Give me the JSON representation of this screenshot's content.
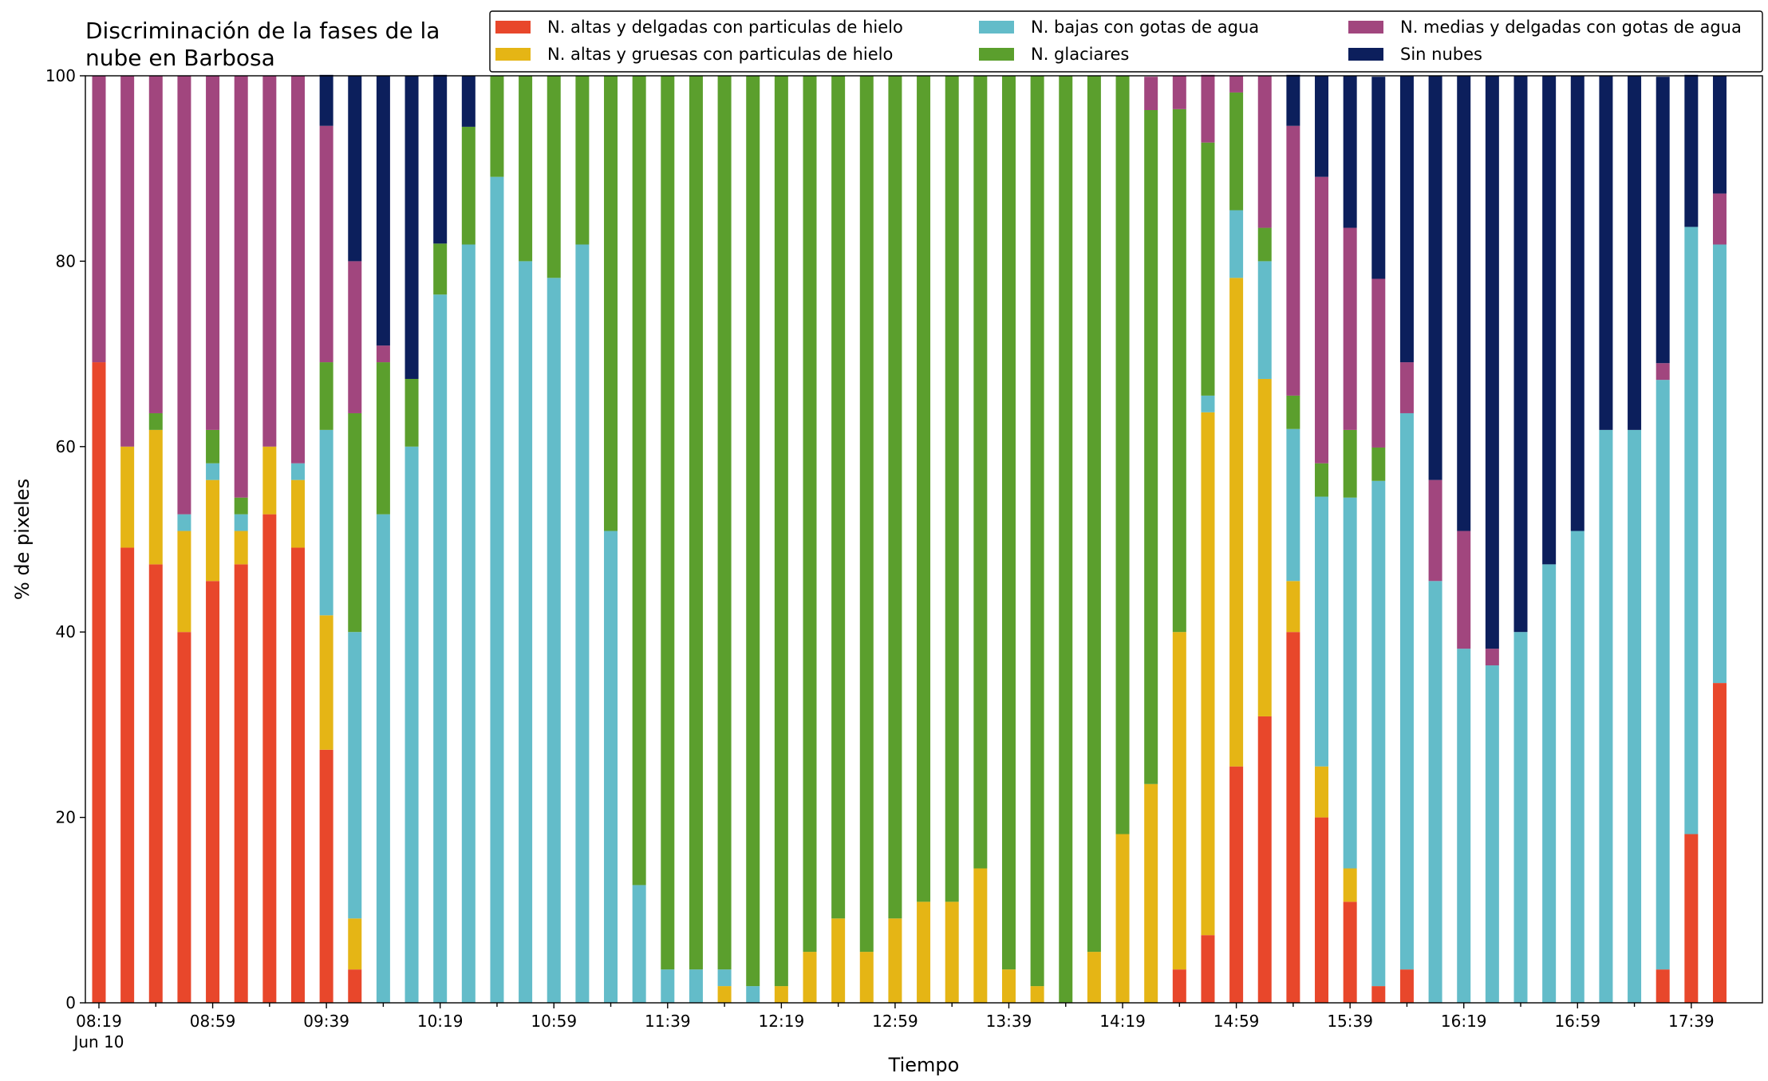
{
  "chart_data": {
    "type": "stacked_bar",
    "title": "Discriminación de la fases de la\nnube en Barbosa",
    "x_label": "Tiempo",
    "y_label": "% de pixeles",
    "x_sublabel": "Jun 10",
    "categories": [
      "08:19",
      null,
      null,
      null,
      "08:59",
      null,
      null,
      null,
      "09:39",
      null,
      null,
      null,
      "10:19",
      null,
      null,
      null,
      "10:59",
      null,
      null,
      null,
      "11:39",
      null,
      null,
      null,
      "12:19",
      null,
      null,
      null,
      "12:59",
      null,
      null,
      null,
      "13:39",
      null,
      null,
      null,
      "14:19",
      null,
      null,
      null,
      "14:59",
      null,
      null,
      null,
      "15:39",
      null,
      null,
      null,
      "16:19",
      null,
      null,
      null,
      "16:59",
      null,
      null,
      null,
      "17:39",
      null
    ],
    "ylim": [
      0,
      100
    ],
    "yticks": [
      0,
      20,
      40,
      60,
      80,
      100
    ],
    "legend": "top-right",
    "series": [
      {
        "name": "N. altas y delgadas con particulas de hielo",
        "color": "#e8472b",
        "values": [
          69.1,
          49.1,
          47.3,
          40,
          45.5,
          47.3,
          52.7,
          49.1,
          27.3,
          3.6,
          0,
          0,
          0,
          0,
          0,
          0,
          0,
          0,
          0,
          0,
          0,
          0,
          0,
          0,
          0,
          0,
          0,
          0,
          0,
          0,
          0,
          0,
          0,
          0,
          0,
          0,
          0,
          0,
          3.6,
          7.3,
          25.5,
          30.9,
          40,
          20,
          10.9,
          1.8,
          3.6,
          0,
          0,
          0,
          0,
          0,
          0,
          0,
          0,
          3.6,
          18.2,
          34.5
        ]
      },
      {
        "name": "N. altas y gruesas con particulas de hielo",
        "color": "#e5b515",
        "values": [
          0,
          10.9,
          14.5,
          10.9,
          10.9,
          3.6,
          7.3,
          7.3,
          14.5,
          5.5,
          0,
          0,
          0,
          0,
          0,
          0,
          0,
          0,
          0,
          0,
          0,
          0,
          1.8,
          0,
          1.8,
          5.5,
          9.1,
          5.5,
          9.1,
          10.9,
          10.9,
          14.5,
          3.6,
          1.8,
          0,
          5.5,
          18.2,
          23.6,
          36.4,
          56.4,
          52.7,
          36.4,
          5.5,
          5.5,
          3.6,
          0,
          0,
          0,
          0,
          0,
          0,
          0,
          0,
          0,
          0,
          0,
          0,
          0
        ]
      },
      {
        "name": "N. bajas con gotas de agua",
        "color": "#63bcc9",
        "values": [
          0,
          0,
          0,
          1.8,
          1.8,
          1.8,
          0,
          1.8,
          20,
          30.9,
          52.7,
          60,
          76.4,
          81.8,
          89.1,
          80,
          78.2,
          81.8,
          50.9,
          12.7,
          3.6,
          3.6,
          1.8,
          1.8,
          0,
          0,
          0,
          0,
          0,
          0,
          0,
          0,
          0,
          0,
          0,
          0,
          0,
          0,
          0,
          1.8,
          7.3,
          12.7,
          16.4,
          29.1,
          40,
          54.5,
          60,
          45.5,
          38.2,
          36.4,
          40,
          47.3,
          50.9,
          61.8,
          61.8,
          63.6,
          65.5,
          47.3
        ]
      },
      {
        "name": "N. glaciares",
        "color": "#5b9f2d",
        "values": [
          0,
          0,
          1.8,
          0,
          3.6,
          1.8,
          0,
          0,
          7.3,
          23.6,
          16.4,
          7.3,
          5.5,
          12.7,
          10.9,
          20,
          21.8,
          18.2,
          49.1,
          87.3,
          96.4,
          96.4,
          96.4,
          98.2,
          98.2,
          94.5,
          90.9,
          94.5,
          90.9,
          89.1,
          89.1,
          85.5,
          96.4,
          98.2,
          100,
          94.5,
          81.8,
          72.7,
          56.4,
          27.3,
          12.7,
          3.6,
          3.6,
          3.6,
          7.3,
          3.6,
          0,
          0,
          0,
          0,
          0,
          0,
          0,
          0,
          0,
          0,
          0,
          0
        ]
      },
      {
        "name": "N. medias y delgadas con gotas de agua",
        "color": "#a1467e",
        "values": [
          30.9,
          40,
          36.4,
          47.3,
          38.2,
          45.5,
          40,
          41.8,
          25.5,
          16.4,
          1.8,
          0,
          0,
          0,
          0,
          0,
          0,
          0,
          0,
          0,
          0,
          0,
          0,
          0,
          0,
          0,
          0,
          0,
          0,
          0,
          0,
          0,
          0,
          0,
          0,
          0,
          0,
          3.6,
          3.6,
          7.3,
          1.8,
          16.4,
          29.1,
          30.9,
          21.8,
          18.2,
          5.5,
          10.9,
          12.7,
          1.8,
          0,
          0,
          0,
          0,
          0,
          1.8,
          0,
          5.5
        ]
      },
      {
        "name": "Sin nubes",
        "color": "#0c1f5c",
        "values": [
          0,
          0,
          0,
          0,
          0,
          0,
          0,
          0,
          5.5,
          20,
          29.1,
          32.7,
          18.2,
          5.5,
          0,
          0,
          0,
          0,
          0,
          0,
          0,
          0,
          0,
          0,
          0,
          0,
          0,
          0,
          0,
          0,
          0,
          0,
          0,
          0,
          0,
          0,
          0,
          0,
          0,
          0,
          0,
          0,
          5.5,
          10.9,
          16.4,
          21.8,
          30.9,
          43.6,
          49.1,
          61.8,
          60,
          52.7,
          49.1,
          38.2,
          38.2,
          30.9,
          16.4,
          12.7
        ]
      }
    ]
  }
}
